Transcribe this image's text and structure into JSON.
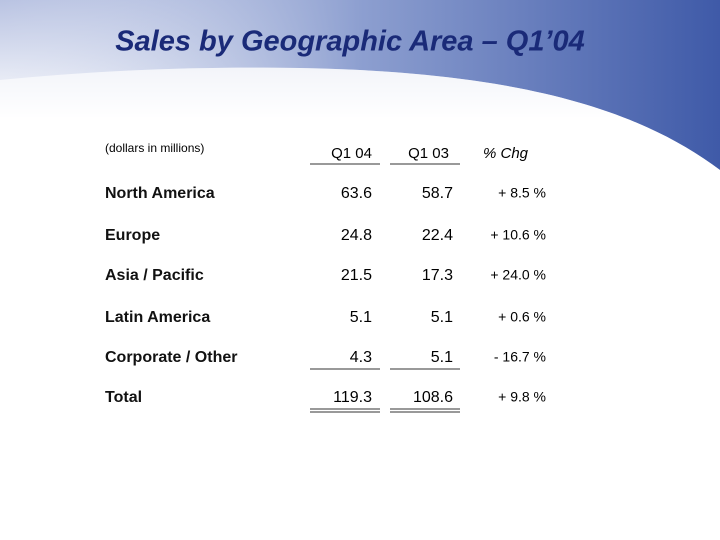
{
  "header": {
    "title": "Sales by Geographic Area – Q1’04"
  },
  "table": {
    "note": "(dollars in millions)",
    "columns": [
      "Q1 04",
      "Q1 03",
      "% Chg"
    ],
    "rows": [
      [
        "North America",
        "63.6",
        "58.7",
        "+ 8.5 %"
      ],
      [
        "Europe",
        "24.8",
        "22.4",
        "+ 10.6 %"
      ],
      [
        "Asia / Pacific",
        "21.5",
        "17.3",
        "+ 24.0 %"
      ],
      [
        "Latin America",
        "5.1",
        "5.1",
        "+ 0.6 %"
      ],
      [
        "Corporate / Other",
        "4.3",
        "5.1",
        "- 16.7 %"
      ],
      [
        "Total",
        "119.3",
        "108.6",
        "+ 9.8 %"
      ]
    ]
  }
}
